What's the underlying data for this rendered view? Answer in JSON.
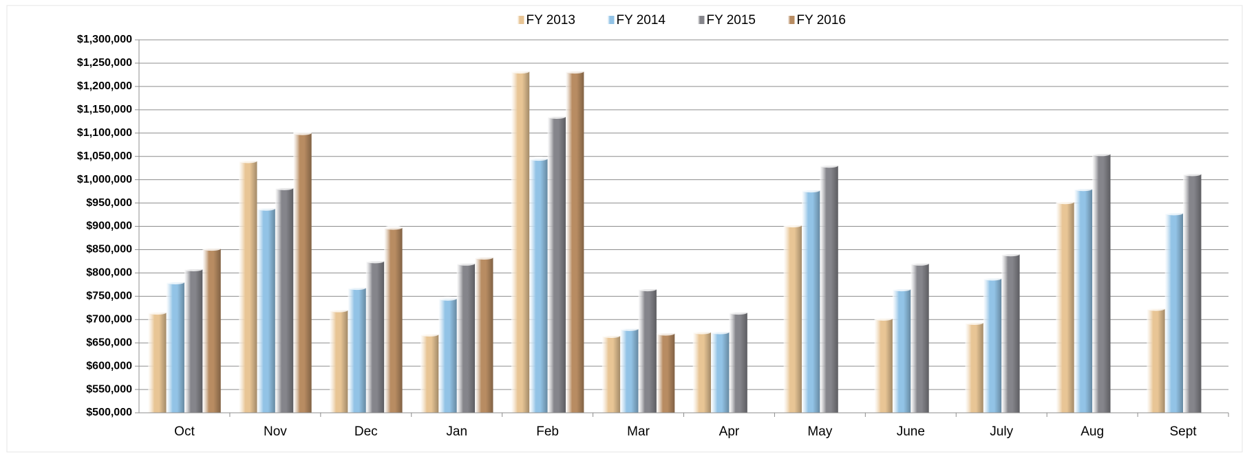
{
  "chart_data": {
    "type": "bar",
    "categories": [
      "Oct",
      "Nov",
      "Dec",
      "Jan",
      "Feb",
      "Mar",
      "Apr",
      "May",
      "June",
      "July",
      "Aug",
      "Sept"
    ],
    "series": [
      {
        "name": "FY 2013",
        "color": "#e8c595",
        "values": [
          715000,
          1040000,
          720000,
          668000,
          1232000,
          665000,
          673000,
          902000,
          702000,
          693000,
          952000,
          723000
        ]
      },
      {
        "name": "FY 2014",
        "color": "#92c3e6",
        "values": [
          780000,
          938000,
          768000,
          745000,
          1045000,
          680000,
          673000,
          977000,
          765000,
          788000,
          980000,
          928000
        ]
      },
      {
        "name": "FY 2015",
        "color": "#85858b",
        "values": [
          808000,
          982000,
          825000,
          820000,
          1135000,
          765000,
          715000,
          1030000,
          820000,
          840000,
          1055000,
          1012000
        ]
      },
      {
        "name": "FY 2016",
        "color": "#b88c62",
        "values": [
          852000,
          1100000,
          897000,
          833000,
          1232000,
          670000,
          null,
          null,
          null,
          null,
          null,
          null
        ]
      }
    ],
    "ylim": [
      500000,
      1300000
    ],
    "yticks": [
      {
        "value": 500000,
        "label": "$500,000"
      },
      {
        "value": 550000,
        "label": "$550,000"
      },
      {
        "value": 600000,
        "label": "$600,000"
      },
      {
        "value": 650000,
        "label": "$650,000"
      },
      {
        "value": 700000,
        "label": "$700,000"
      },
      {
        "value": 750000,
        "label": "$750,000"
      },
      {
        "value": 800000,
        "label": "$800,000"
      },
      {
        "value": 850000,
        "label": "$850,000"
      },
      {
        "value": 900000,
        "label": "$900,000"
      },
      {
        "value": 950000,
        "label": "$950,000"
      },
      {
        "value": 1000000,
        "label": "$1,000,000"
      },
      {
        "value": 1050000,
        "label": "$1,050,000"
      },
      {
        "value": 1100000,
        "label": "$1,100,000"
      },
      {
        "value": 1150000,
        "label": "$1,150,000"
      },
      {
        "value": 1200000,
        "label": "$1,200,000"
      },
      {
        "value": 1250000,
        "label": "$1,250,000"
      },
      {
        "value": 1300000,
        "label": "$1,300,000"
      }
    ],
    "grid": true,
    "legend": "top"
  }
}
